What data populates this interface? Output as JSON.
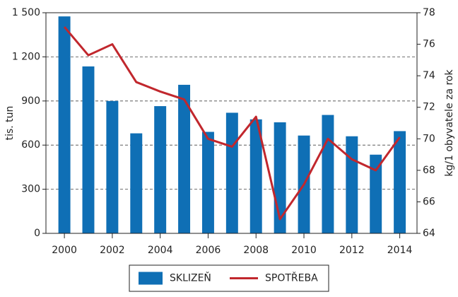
{
  "chart_data": {
    "type": "bar_line",
    "x": [
      2000,
      2001,
      2002,
      2003,
      2004,
      2005,
      2006,
      2007,
      2008,
      2009,
      2010,
      2011,
      2012,
      2013,
      2014
    ],
    "xlim": [
      1999.23,
      2014.72
    ],
    "xticks": [
      2000,
      2002,
      2004,
      2006,
      2008,
      2010,
      2012,
      2014
    ],
    "ylabel": "tis. tun",
    "y2label": "kg/1 obyvatele za rok",
    "ylim": [
      0,
      1500
    ],
    "yticks": [
      0,
      300,
      600,
      900,
      {
        "value": 1200,
        "label": "1 200"
      },
      {
        "value": 1500,
        "label": "1 500"
      }
    ],
    "y2lim": [
      64,
      78
    ],
    "y2ticks": [
      64,
      66,
      68,
      70,
      72,
      74,
      76,
      78
    ],
    "grid": true,
    "legend": "bottom",
    "series": [
      {
        "name": "SKLIZEŇ",
        "type": "bar",
        "color": "#0f6fb5",
        "values": [
          1475,
          1135,
          900,
          680,
          865,
          1010,
          690,
          820,
          775,
          755,
          665,
          805,
          660,
          535,
          695
        ]
      },
      {
        "name": "SPOTŘEBA",
        "type": "line",
        "axis": "y2",
        "color": "#c1272d",
        "values": [
          77.1,
          75.3,
          76.0,
          73.6,
          73.0,
          72.5,
          70.0,
          69.5,
          71.4,
          64.9,
          67.1,
          70.0,
          68.7,
          68.0,
          70.1
        ]
      }
    ]
  }
}
